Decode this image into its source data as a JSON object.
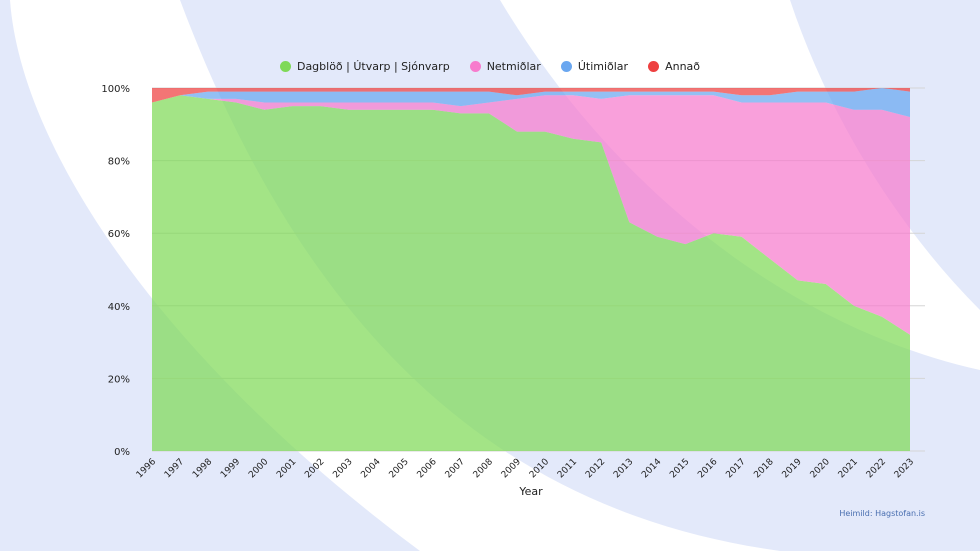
{
  "chart_data": {
    "type": "area",
    "stacked": true,
    "percent": true,
    "xlabel": "Year",
    "ylabel": "",
    "ylim": [
      0,
      100
    ],
    "yticks": [
      "0%",
      "20%",
      "40%",
      "60%",
      "80%",
      "100%"
    ],
    "ytick_values": [
      0,
      20,
      40,
      60,
      80,
      100
    ],
    "grid": true,
    "legend_position": "top-center",
    "categories": [
      "1996",
      "1997",
      "1998",
      "1999",
      "2000",
      "2001",
      "2002",
      "2003",
      "2004",
      "2005",
      "2006",
      "2007",
      "2008",
      "2009",
      "2010",
      "2011",
      "2012",
      "2013",
      "2014",
      "2015",
      "2016",
      "2017",
      "2018",
      "2019",
      "2020",
      "2021",
      "2022",
      "2023"
    ],
    "series": [
      {
        "name": "Dagblöð | Útvarp | Sjónvarp",
        "color": "#7fd957",
        "values": [
          96,
          98,
          97,
          96,
          94,
          95,
          95,
          94,
          94,
          94,
          94,
          93,
          93,
          88,
          88,
          86,
          85,
          63,
          59,
          57,
          60,
          59,
          53,
          47,
          46,
          40,
          37,
          32
        ]
      },
      {
        "name": "Netmiðlar",
        "color": "#f77ccd",
        "values": [
          0,
          0,
          0,
          1,
          2,
          1,
          1,
          2,
          2,
          2,
          2,
          2,
          3,
          9,
          10,
          12,
          12,
          35,
          39,
          41,
          38,
          37,
          43,
          49,
          50,
          54,
          57,
          60
        ]
      },
      {
        "name": "Útimiðlar",
        "color": "#6aa7f0",
        "values": [
          0,
          0,
          2,
          2,
          3,
          3,
          3,
          3,
          3,
          3,
          3,
          4,
          3,
          1,
          1,
          1,
          2,
          1,
          1,
          1,
          1,
          2,
          2,
          3,
          3,
          5,
          6,
          7
        ]
      },
      {
        "name": "Annað",
        "color": "#ee4040",
        "values": [
          4,
          2,
          1,
          1,
          1,
          1,
          1,
          1,
          1,
          1,
          1,
          1,
          1,
          2,
          1,
          1,
          1,
          1,
          1,
          1,
          1,
          2,
          2,
          1,
          1,
          1,
          0,
          1
        ]
      }
    ]
  },
  "source_label": "Heimild: Hagstofan.is"
}
